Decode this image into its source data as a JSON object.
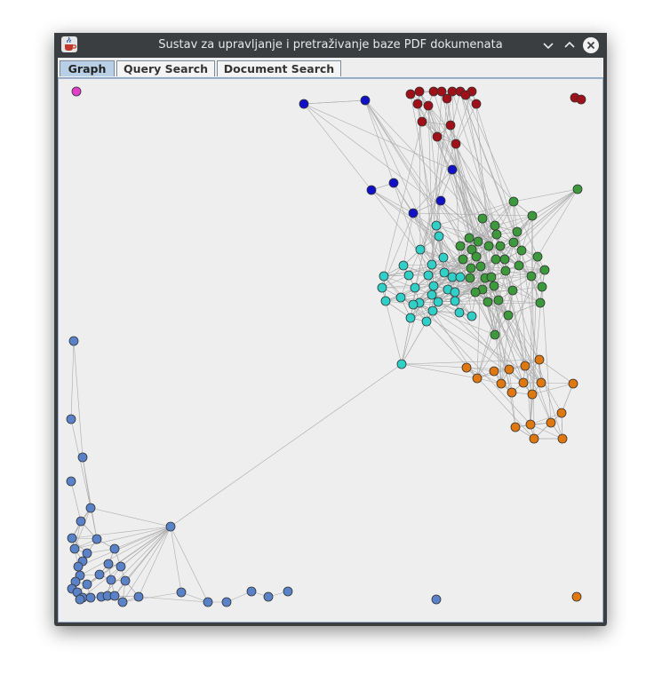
{
  "window": {
    "title": "Sustav za upravljanje i pretraživanje baze PDF dokumenata",
    "app_icon": "java-cup-icon",
    "controls": [
      "minimize-icon",
      "maximize-icon",
      "close-icon"
    ]
  },
  "tabs": [
    {
      "label": "Graph",
      "active": true
    },
    {
      "label": "Query Search",
      "active": false
    },
    {
      "label": "Document Search",
      "active": false
    }
  ],
  "graph": {
    "edge_color": "#aaaaaa",
    "cluster_colors": {
      "magenta": "#e040c8",
      "dark_red": "#a01018",
      "blue": "#1010c8",
      "green": "#3c9a3c",
      "cyan": "#30d0c8",
      "orange": "#e07810",
      "steel_blue": "#5a82c8"
    }
  }
}
